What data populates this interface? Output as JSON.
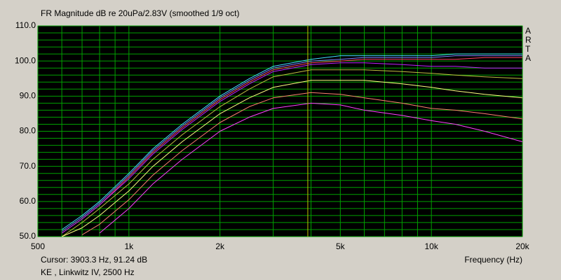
{
  "chart_data": {
    "type": "line",
    "title": "FR Magnitude dB re 20uPa/2.83V (smoothed 1/9 oct)",
    "x_label": "Frequency (Hz)",
    "side_label": "ARTA",
    "notes": [
      "Cursor: 3903.3 Hz, 91.24 dB",
      "KE , Linkwitz IV, 2500 Hz"
    ],
    "cursor": {
      "x": 3903.3,
      "color": "#c0c000"
    },
    "x_log": true,
    "grid": true,
    "xlim": [
      500,
      20000
    ],
    "ylim": [
      50,
      110
    ],
    "xticks": [
      {
        "value": 500,
        "label": "500"
      },
      {
        "value": 1000,
        "label": "1k"
      },
      {
        "value": 2000,
        "label": "2k"
      },
      {
        "value": 5000,
        "label": "5k"
      },
      {
        "value": 10000,
        "label": "10k"
      },
      {
        "value": 20000,
        "label": "20k"
      }
    ],
    "xminorticks": [
      600,
      700,
      800,
      900,
      3000,
      4000,
      6000,
      7000,
      8000,
      9000
    ],
    "yticks": [
      {
        "value": 50,
        "label": "50.0"
      },
      {
        "value": 60,
        "label": "60.0"
      },
      {
        "value": 70,
        "label": "70.0"
      },
      {
        "value": 80,
        "label": "80.0"
      },
      {
        "value": 90,
        "label": "90.0"
      },
      {
        "value": 100,
        "label": "100.0"
      },
      {
        "value": 110,
        "label": "110.0"
      }
    ],
    "yminorticks": [
      52,
      54,
      56,
      58,
      62,
      64,
      66,
      68,
      72,
      74,
      76,
      78,
      82,
      84,
      86,
      88,
      92,
      94,
      96,
      98,
      102,
      104,
      106,
      108
    ],
    "x": [
      600,
      700,
      800,
      1000,
      1200,
      1500,
      2000,
      2500,
      3000,
      4000,
      5000,
      6000,
      8000,
      10000,
      12000,
      15000,
      20000
    ],
    "series": [
      {
        "color": "#40e0ff",
        "values": [
          52,
          56,
          60,
          68,
          75,
          82,
          90,
          95,
          98.5,
          100.5,
          101.5,
          101.5,
          101.5,
          101.5,
          102,
          102,
          102
        ]
      },
      {
        "color": "#8080ff",
        "values": [
          51.5,
          55.5,
          59.5,
          67.5,
          74.5,
          81.5,
          89.5,
          94.5,
          98,
          100,
          100.5,
          101,
          101,
          101,
          101.5,
          101.5,
          101.5
        ]
      },
      {
        "color": "#ff4060",
        "values": [
          51,
          55,
          59,
          67,
          74,
          81,
          89,
          94,
          97.5,
          99.5,
          100,
          100.5,
          100.5,
          100.5,
          100.5,
          101,
          101
        ]
      },
      {
        "color": "#c020ff",
        "values": [
          51,
          55,
          59,
          66.5,
          73.5,
          80.5,
          88.5,
          93.5,
          97,
          99,
          99.5,
          99.5,
          99,
          98.5,
          98.5,
          98,
          98
        ]
      },
      {
        "color": "#c0c040",
        "values": [
          50,
          54,
          58,
          65,
          72,
          79,
          87,
          92,
          95.5,
          97.5,
          97.5,
          97.5,
          97,
          96.5,
          96,
          95.5,
          95
        ]
      },
      {
        "color": "#ffff80",
        "values": [
          50,
          52.5,
          56,
          63,
          70,
          77,
          85,
          89.5,
          92.5,
          94.5,
          94.5,
          94.5,
          93.5,
          92.5,
          91.5,
          90.5,
          89.5
        ]
      },
      {
        "color": "#ff8070",
        "values": [
          null,
          50.5,
          53.5,
          60.5,
          67.5,
          74.5,
          82.5,
          87,
          89.5,
          91,
          90.5,
          89.5,
          88,
          86.5,
          86,
          85,
          83.5
        ]
      },
      {
        "color": "#ff40ff",
        "values": [
          null,
          null,
          51,
          58,
          65,
          72,
          80,
          84,
          86.5,
          88,
          87.5,
          86,
          84.5,
          83,
          82,
          80,
          77
        ]
      }
    ]
  }
}
